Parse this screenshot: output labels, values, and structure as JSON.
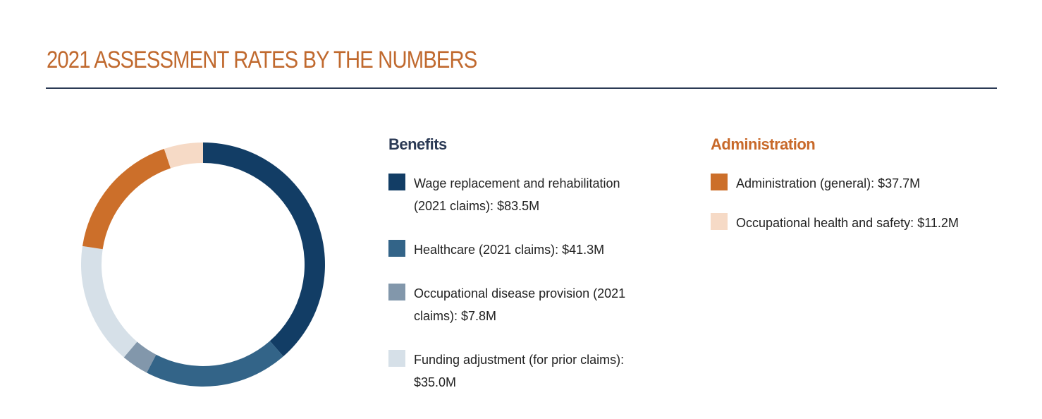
{
  "chart_data": {
    "type": "donut",
    "title": "2021 ASSESSMENT RATES BY THE NUMBERS",
    "groups": [
      {
        "title": "Benefits",
        "title_color": "#2b3a55",
        "categories": [
          "Wage replacement and rehabilitation (2021 claims):",
          "Healthcare (2021 claims):",
          "Occupational disease provision (2021 claims):",
          "Funding adjustment (for prior claims):"
        ],
        "values": [
          83.5,
          41.3,
          7.8,
          35.0
        ],
        "value_labels": [
          "$83.5M",
          "$41.3M",
          "$7.8M",
          "$35.0M"
        ],
        "colors": [
          "#123d65",
          "#336488",
          "#8297ab",
          "#d6e0e8"
        ]
      },
      {
        "title": "Administration",
        "title_color": "#c8692a",
        "categories": [
          "Administration (general):",
          "Occupational health and safety:"
        ],
        "values": [
          37.7,
          11.2
        ],
        "value_labels": [
          "$37.7M",
          "$11.2M"
        ],
        "colors": [
          "#cc6f2a",
          "#f6dac6"
        ]
      }
    ]
  }
}
